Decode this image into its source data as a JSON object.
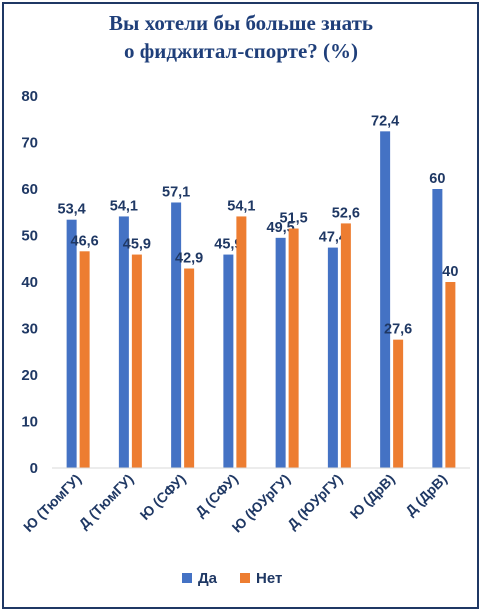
{
  "chart_data": {
    "type": "bar",
    "title": "Вы хотели бы больше знать",
    "subtitle": "о фиджитал-спорте? (%)",
    "categories": [
      "Ю (ТюмГУ)",
      "Д (ТюмГУ)",
      "Ю (СФУ)",
      "Д (СФУ)",
      "Ю (ЮУрГУ)",
      "Д (ЮУрГУ)",
      "Ю (ДрВ)",
      "Д (ДрВ)"
    ],
    "series": [
      {
        "name": "Да",
        "values": [
          53.4,
          54.1,
          57.1,
          45.9,
          49.5,
          47.4,
          72.4,
          60
        ],
        "labels": [
          "53,4",
          "54,1",
          "57,1",
          "45,9",
          "49,5",
          "47,4",
          "72,4",
          "60"
        ],
        "color": "#4472c4"
      },
      {
        "name": "Нет",
        "values": [
          46.6,
          45.9,
          42.9,
          54.1,
          51.5,
          52.6,
          27.6,
          40
        ],
        "labels": [
          "46,6",
          "45,9",
          "42,9",
          "54,1",
          "51,5",
          "52,6",
          "27,6",
          "40"
        ],
        "color": "#ed7d31"
      }
    ],
    "ylim": [
      0,
      80
    ],
    "yticks": [
      0,
      10,
      20,
      30,
      40,
      50,
      60,
      70,
      80
    ],
    "grid": false,
    "legend": "bottom",
    "xlabel": "",
    "ylabel": ""
  }
}
